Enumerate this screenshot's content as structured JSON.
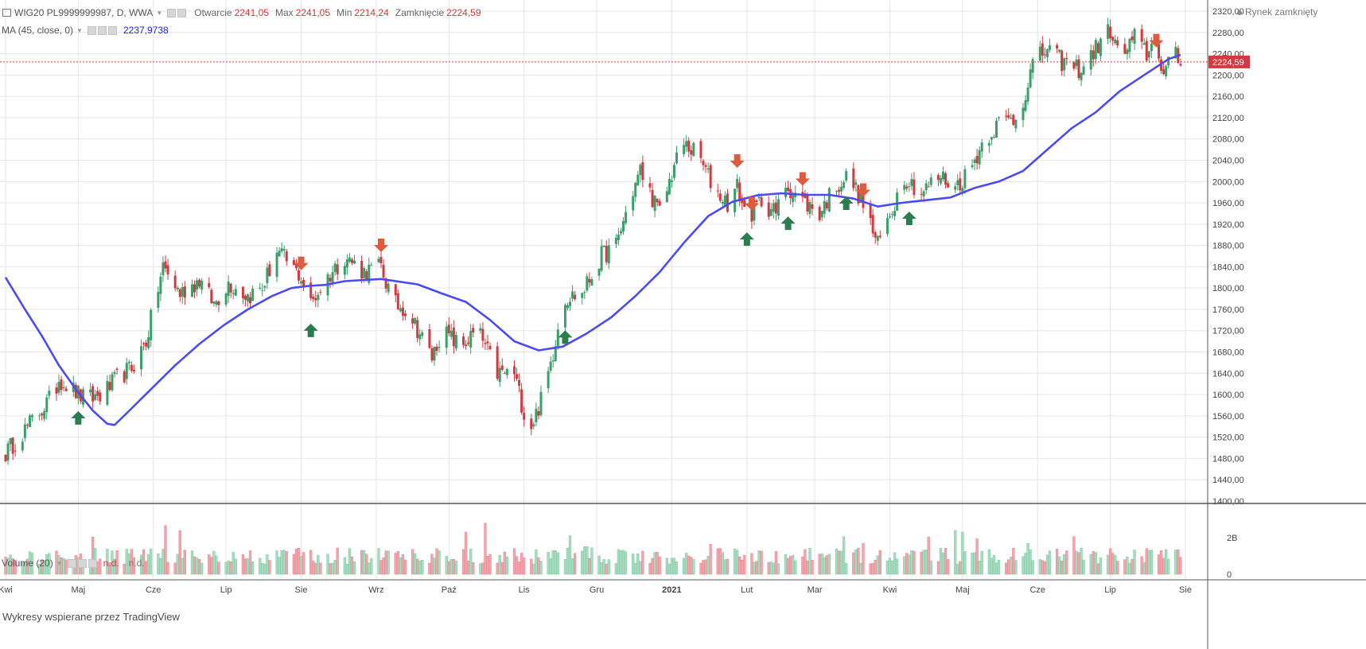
{
  "header": {
    "symbol_line": "WIG20 PL9999999987, D, WWA",
    "open_label": "Otwarcie",
    "open_value": "2241,05",
    "high_label": "Max",
    "high_value": "2241,05",
    "low_label": "Min",
    "low_value": "2214,24",
    "close_label": "Zamknięcie",
    "close_value": "2224,59"
  },
  "ma_legend": {
    "label": "MA (45, close, 0)",
    "value": "2237,9738"
  },
  "volume_legend": {
    "label": "Volume (20)",
    "value1": "n.d.",
    "value2": "n.d."
  },
  "market_status": "Rynek zamknięty",
  "watermark": "Wykresy wspierane przez TradingView",
  "colors": {
    "up": "#3a9f6a",
    "down": "#d3393f",
    "ma": "#4a4cf2",
    "vol_up": "#a6dcbf",
    "vol_down": "#f3a5ad",
    "up_arrow": "#2b7d4f",
    "down_arrow": "#e05a3d"
  },
  "chart_data": {
    "type": "candlestick",
    "y_ticks": [
      "2320,00",
      "2280,00",
      "2240,00",
      "2200,00",
      "2160,00",
      "2120,00",
      "2080,00",
      "2040,00",
      "2000,00",
      "1960,00",
      "1920,00",
      "1880,00",
      "1840,00",
      "1800,00",
      "1760,00",
      "1720,00",
      "1680,00",
      "1640,00",
      "1600,00",
      "1560,00",
      "1520,00",
      "1480,00",
      "1440,00",
      "1400,00"
    ],
    "ylim": [
      1400,
      2320
    ],
    "x_labels": [
      "Kwi",
      "Maj",
      "Cze",
      "Lip",
      "Sie",
      "Wrz",
      "Paź",
      "Lis",
      "Gru",
      "2021",
      "Lut",
      "Mar",
      "Kwi",
      "Maj",
      "Cze",
      "Lip",
      "Sie"
    ],
    "x_label_days": [
      0,
      30,
      61,
      91,
      122,
      153,
      183,
      214,
      244,
      275,
      306,
      334,
      365,
      395,
      426,
      456,
      487
    ],
    "last_price": 2224.59,
    "last_price_label": "2224,59",
    "ma_line": [
      [
        0,
        1820
      ],
      [
        8,
        1760
      ],
      [
        15,
        1710
      ],
      [
        22,
        1655
      ],
      [
        29,
        1610
      ],
      [
        36,
        1570
      ],
      [
        42,
        1545
      ],
      [
        45,
        1543
      ],
      [
        50,
        1565
      ],
      [
        60,
        1610
      ],
      [
        70,
        1655
      ],
      [
        80,
        1695
      ],
      [
        90,
        1730
      ],
      [
        100,
        1760
      ],
      [
        110,
        1785
      ],
      [
        118,
        1800
      ],
      [
        125,
        1804
      ],
      [
        132,
        1806
      ],
      [
        140,
        1813
      ],
      [
        155,
        1817
      ],
      [
        170,
        1807
      ],
      [
        180,
        1790
      ],
      [
        190,
        1774
      ],
      [
        200,
        1740
      ],
      [
        210,
        1700
      ],
      [
        220,
        1683
      ],
      [
        230,
        1690
      ],
      [
        240,
        1715
      ],
      [
        250,
        1745
      ],
      [
        260,
        1785
      ],
      [
        270,
        1830
      ],
      [
        280,
        1885
      ],
      [
        290,
        1935
      ],
      [
        300,
        1962
      ],
      [
        310,
        1974
      ],
      [
        320,
        1978
      ],
      [
        330,
        1975
      ],
      [
        340,
        1975
      ],
      [
        350,
        1968
      ],
      [
        360,
        1953
      ],
      [
        370,
        1960
      ],
      [
        380,
        1965
      ],
      [
        390,
        1970
      ],
      [
        400,
        1988
      ],
      [
        410,
        2000
      ],
      [
        420,
        2020
      ],
      [
        430,
        2060
      ],
      [
        440,
        2100
      ],
      [
        450,
        2130
      ],
      [
        460,
        2170
      ],
      [
        470,
        2200
      ],
      [
        480,
        2230
      ],
      [
        485,
        2238
      ]
    ],
    "volume_ticks": [
      "2B",
      "0"
    ],
    "volume_max": 4,
    "up_signal_days": [
      30,
      126,
      231,
      306,
      323,
      347,
      373
    ],
    "down_signal_days": [
      122,
      155,
      302,
      308,
      329,
      354,
      475
    ],
    "segments": [
      {
        "d": 0,
        "p": 1490
      },
      {
        "d": 20,
        "p": 1600
      },
      {
        "d": 22,
        "p": 1630
      },
      {
        "d": 33,
        "p": 1590
      },
      {
        "d": 40,
        "p": 1600
      },
      {
        "d": 46,
        "p": 1630
      },
      {
        "d": 52,
        "p": 1650
      },
      {
        "d": 58,
        "p": 1700
      },
      {
        "d": 65,
        "p": 1840
      },
      {
        "d": 72,
        "p": 1790
      },
      {
        "d": 80,
        "p": 1815
      },
      {
        "d": 86,
        "p": 1770
      },
      {
        "d": 92,
        "p": 1810
      },
      {
        "d": 100,
        "p": 1785
      },
      {
        "d": 106,
        "p": 1800
      },
      {
        "d": 112,
        "p": 1870
      },
      {
        "d": 122,
        "p": 1820
      },
      {
        "d": 126,
        "p": 1770
      },
      {
        "d": 132,
        "p": 1815
      },
      {
        "d": 140,
        "p": 1860
      },
      {
        "d": 148,
        "p": 1830
      },
      {
        "d": 155,
        "p": 1840
      },
      {
        "d": 160,
        "p": 1770
      },
      {
        "d": 166,
        "p": 1760
      },
      {
        "d": 176,
        "p": 1670
      },
      {
        "d": 180,
        "p": 1720
      },
      {
        "d": 188,
        "p": 1690
      },
      {
        "d": 195,
        "p": 1720
      },
      {
        "d": 203,
        "p": 1640
      },
      {
        "d": 210,
        "p": 1640
      },
      {
        "d": 216,
        "p": 1530
      },
      {
        "d": 222,
        "p": 1600
      },
      {
        "d": 226,
        "p": 1680
      },
      {
        "d": 230,
        "p": 1780
      },
      {
        "d": 238,
        "p": 1790
      },
      {
        "d": 246,
        "p": 1860
      },
      {
        "d": 252,
        "p": 1880
      },
      {
        "d": 258,
        "p": 1970
      },
      {
        "d": 262,
        "p": 2020
      },
      {
        "d": 270,
        "p": 1940
      },
      {
        "d": 276,
        "p": 2030
      },
      {
        "d": 280,
        "p": 2070
      },
      {
        "d": 286,
        "p": 2050
      },
      {
        "d": 292,
        "p": 1990
      },
      {
        "d": 298,
        "p": 1960
      },
      {
        "d": 302,
        "p": 1990
      },
      {
        "d": 306,
        "p": 1930
      },
      {
        "d": 312,
        "p": 1965
      },
      {
        "d": 318,
        "p": 1940
      },
      {
        "d": 322,
        "p": 1995
      },
      {
        "d": 330,
        "p": 1960
      },
      {
        "d": 336,
        "p": 1940
      },
      {
        "d": 342,
        "p": 1990
      },
      {
        "d": 348,
        "p": 2010
      },
      {
        "d": 354,
        "p": 1960
      },
      {
        "d": 360,
        "p": 1880
      },
      {
        "d": 366,
        "p": 1950
      },
      {
        "d": 371,
        "p": 2010
      },
      {
        "d": 378,
        "p": 1980
      },
      {
        "d": 386,
        "p": 2010
      },
      {
        "d": 392,
        "p": 1990
      },
      {
        "d": 398,
        "p": 2020
      },
      {
        "d": 404,
        "p": 2080
      },
      {
        "d": 410,
        "p": 2110
      },
      {
        "d": 418,
        "p": 2120
      },
      {
        "d": 424,
        "p": 2220
      },
      {
        "d": 430,
        "p": 2250
      },
      {
        "d": 436,
        "p": 2225
      },
      {
        "d": 444,
        "p": 2210
      },
      {
        "d": 450,
        "p": 2250
      },
      {
        "d": 456,
        "p": 2285
      },
      {
        "d": 460,
        "p": 2230
      },
      {
        "d": 466,
        "p": 2270
      },
      {
        "d": 471,
        "p": 2240
      },
      {
        "d": 475,
        "p": 2265
      },
      {
        "d": 478,
        "p": 2200
      },
      {
        "d": 482,
        "p": 2240
      },
      {
        "d": 485,
        "p": 2225
      }
    ]
  }
}
